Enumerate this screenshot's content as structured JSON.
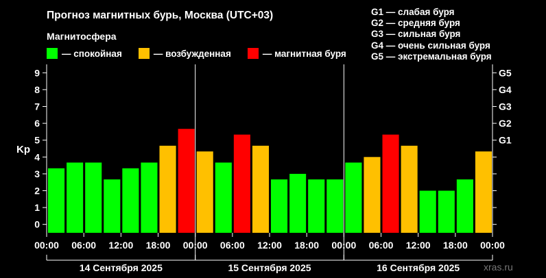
{
  "title": "Прогноз магнитных бурь, Москва (UTC+03)",
  "subtitle": "Магнитосфера",
  "legend": [
    {
      "label": "— спокойная",
      "color": "#00ff00"
    },
    {
      "label": "— возбужденная",
      "color": "#ffc000"
    },
    {
      "label": "— магнитная буря",
      "color": "#ff0000"
    }
  ],
  "g_levels": [
    "G1 — слабая буря",
    "G2 — средняя буря",
    "G3 — сильная буря",
    "G4 — очень сильная буря",
    "G5 — экстремальная буря"
  ],
  "watermark": "xras.ru",
  "chart_data": {
    "type": "bar",
    "ylabel": "Kp",
    "ylim": [
      -0.5,
      9.5
    ],
    "y_ticks": [
      "0",
      "1",
      "2",
      "3",
      "4",
      "5",
      "6",
      "7",
      "8",
      "9"
    ],
    "right_ticks": [
      {
        "label": "G1",
        "value": 5
      },
      {
        "label": "G2",
        "value": 6
      },
      {
        "label": "G3",
        "value": 7
      },
      {
        "label": "G4",
        "value": 8
      },
      {
        "label": "G5",
        "value": 9
      }
    ],
    "x_ticks": [
      "00:00",
      "06:00",
      "12:00",
      "18:00",
      "00:00",
      "06:00",
      "12:00",
      "18:00",
      "00:00",
      "06:00",
      "12:00",
      "18:00",
      "00:00"
    ],
    "days": [
      "14 Сентября 2025",
      "15 Сентября 2025",
      "16 Сентября 2025"
    ],
    "colors": {
      "quiet": "#00ff00",
      "active": "#ffc000",
      "storm": "#ff0000"
    },
    "values": [
      3.33,
      3.67,
      3.67,
      2.67,
      3.33,
      3.67,
      4.67,
      5.67,
      4.33,
      3.67,
      5.33,
      4.67,
      2.67,
      3.0,
      2.67,
      2.67,
      3.67,
      4.0,
      5.33,
      4.67,
      2.0,
      2.0,
      2.67,
      4.33
    ],
    "levels": [
      "quiet",
      "quiet",
      "quiet",
      "quiet",
      "quiet",
      "quiet",
      "active",
      "storm",
      "active",
      "quiet",
      "storm",
      "active",
      "quiet",
      "quiet",
      "quiet",
      "quiet",
      "quiet",
      "active",
      "storm",
      "active",
      "quiet",
      "quiet",
      "quiet",
      "active"
    ],
    "grid": false
  }
}
